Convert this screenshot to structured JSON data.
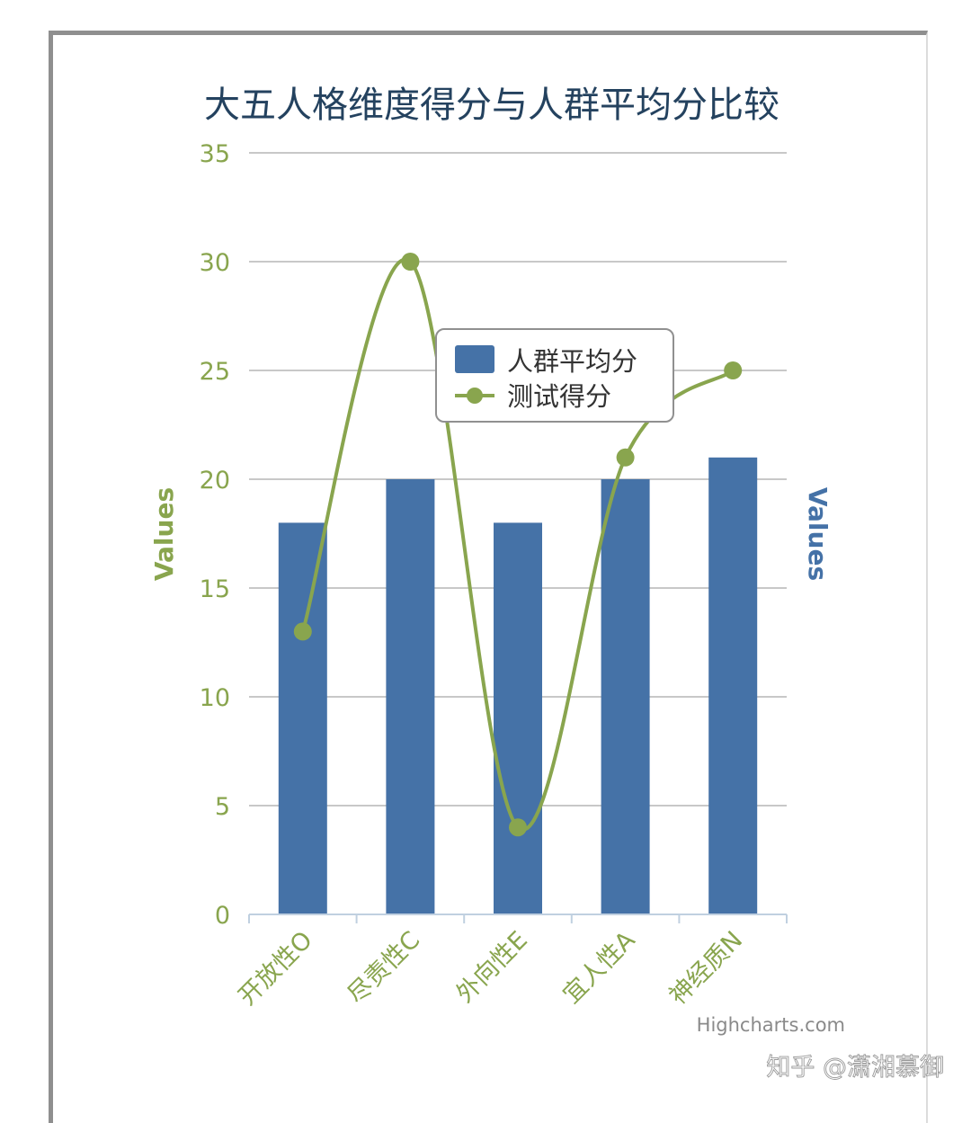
{
  "chart_data": {
    "type": "bar",
    "title": "大五人格维度得分与人群平均分比较",
    "categories": [
      "开放性O",
      "尽责性C",
      "外向性E",
      "宜人性A",
      "神经质N"
    ],
    "series": [
      {
        "name": "人群平均分",
        "type": "bar",
        "color": "#4572a7",
        "values": [
          18,
          20,
          18,
          20,
          21
        ]
      },
      {
        "name": "测试得分",
        "type": "spline",
        "color": "#89a54e",
        "values": [
          13,
          30,
          4,
          21,
          25
        ]
      }
    ],
    "yaxis_left": {
      "label": "Values",
      "ticks": [
        0,
        5,
        10,
        15,
        20,
        25,
        30,
        35
      ],
      "color": "#89a54e"
    },
    "yaxis_right": {
      "label": "Values",
      "color": "#4572a7"
    },
    "ylim": [
      0,
      35
    ],
    "grid": true,
    "legend_position": "top-right",
    "credits": "Highcharts.com"
  },
  "watermark": "知乎 @潇湘慕御"
}
